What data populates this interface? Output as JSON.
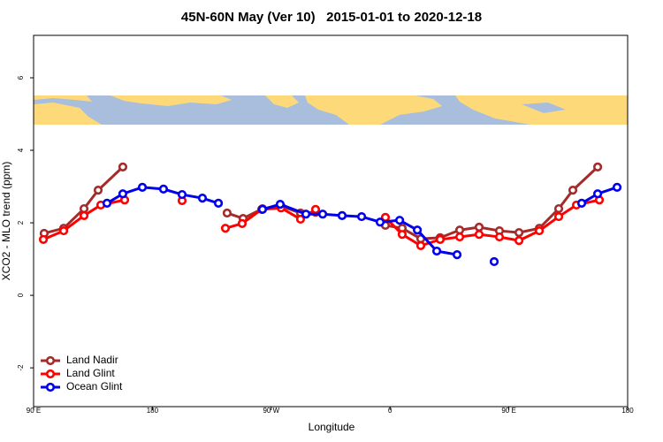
{
  "chart_data": {
    "type": "line",
    "title": "45N-60N May (Ver 10)   2015-01-01 to 2020-12-18",
    "x_label": "Longitude",
    "y_label": "XCO2 - MLO trend (ppm)",
    "xlim": [
      90,
      540
    ],
    "ylim": [
      -3.07,
      7.17
    ],
    "xticks": [
      {
        "value": 90,
        "label": "90 E"
      },
      180,
      {
        "value": 270,
        "label": "90 W"
      },
      {
        "value": 360,
        "label": "0"
      },
      {
        "value": 450,
        "label": "90 E"
      },
      {
        "value": 540,
        "label": "180"
      }
    ],
    "yticks": [
      -2,
      0,
      2,
      4,
      6
    ],
    "legend": "bottom-left",
    "series": [
      {
        "name": "Land Nadir",
        "color": "#a52a2a",
        "x": [
          98.0,
          112.8,
          128.2,
          138.9,
          157.6,
          197,
          236.6,
          248.7,
          263.4,
          277.5,
          292.2,
          303.6,
          330,
          356.5,
          369.2,
          383.3,
          398.0,
          412.8,
          427.5,
          442.9,
          457.7,
          473.1,
          487.8,
          498.5,
          517.3
        ],
        "values": [
          1.71,
          1.85,
          2.39,
          2.9,
          3.54,
          null,
          2.27,
          2.12,
          2.39,
          2.46,
          2.27,
          2.29,
          null,
          1.93,
          1.85,
          1.56,
          1.59,
          1.8,
          1.88,
          1.78,
          1.73,
          1.85,
          2.39,
          2.9,
          3.54
        ]
      },
      {
        "name": "Land Glint",
        "color": "#ff0000",
        "x": [
          97.4,
          112.8,
          128.2,
          140.9,
          159.0,
          180,
          202.5,
          219,
          235.3,
          248.0,
          262.8,
          277.5,
          292.2,
          303.6,
          330,
          356.5,
          369.2,
          383.3,
          398.0,
          412.8,
          427.5,
          442.9,
          457.7,
          473.1,
          487.8,
          501.2,
          518.6
        ],
        "values": [
          1.54,
          1.78,
          2.2,
          2.49,
          2.63,
          null,
          2.61,
          null,
          1.85,
          1.98,
          2.37,
          2.41,
          2.1,
          2.37,
          null,
          2.15,
          1.68,
          1.37,
          1.54,
          1.61,
          1.68,
          1.61,
          1.51,
          1.78,
          2.17,
          2.49,
          2.63
        ]
      },
      {
        "name": "Ocean Glint",
        "color": "#0000ee",
        "x": [
          145.6,
          157.6,
          172.4,
          188.4,
          202.5,
          217.9,
          230.0,
          247,
          263.4,
          276.8,
          296.3,
          309.0,
          323.7,
          338.5,
          352.5,
          367.3,
          380.7,
          395.4,
          410.8,
          425,
          438.9,
          470,
          505.2,
          517.3,
          532.0
        ],
        "values": [
          2.54,
          2.8,
          2.98,
          2.93,
          2.78,
          2.68,
          2.54,
          null,
          2.37,
          2.51,
          2.24,
          2.24,
          2.2,
          2.17,
          2.02,
          2.07,
          1.8,
          1.22,
          1.12,
          null,
          0.93,
          null,
          2.54,
          2.8,
          2.98
        ]
      }
    ]
  }
}
